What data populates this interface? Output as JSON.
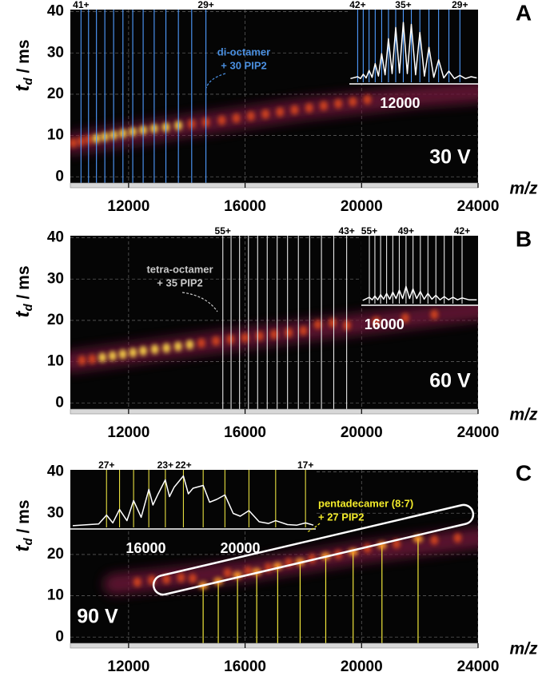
{
  "chart_data": [
    {
      "type": "scatter",
      "panel": "A",
      "voltage": "30 V",
      "xlabel": "m/z",
      "ylabel": {
        "main": "t",
        "sub": "d",
        "rest": " / ms"
      },
      "xlim": [
        10000,
        24000
      ],
      "xticks": [
        12000,
        16000,
        20000,
        24000
      ],
      "ylim": [
        -1.5,
        40.5
      ],
      "yticks": [
        0,
        10,
        20,
        30,
        40
      ],
      "grid": true,
      "band": {
        "color": "#6a1238",
        "x": [
          10000,
          14000,
          18000,
          22000,
          24000
        ],
        "values": [
          8,
          12.3,
          16.4,
          19.5,
          20.5
        ]
      },
      "series": [
        {
          "color": "#d8471c",
          "x": [
            10100,
            10366,
            10625,
            14167,
            14655,
            15200,
            15700,
            16200,
            16700,
            17200,
            17700,
            18200,
            18700,
            19200,
            19700,
            20200
          ],
          "values": [
            8.2,
            8.6,
            9.0,
            12.8,
            13.2,
            13.7,
            14.2,
            14.7,
            15.2,
            15.7,
            16.2,
            16.7,
            17.2,
            17.7,
            18.2,
            18.7
          ]
        },
        {
          "color": "#ffd84a",
          "x": [
            10897,
            11184,
            11486,
            11806,
            12143,
            12500,
            12879,
            13281,
            13710
          ],
          "values": [
            9.3,
            9.7,
            10.1,
            10.5,
            10.9,
            11.3,
            11.7,
            12.0,
            12.4
          ]
        }
      ],
      "charge_lines": {
        "color": "#4f9cff",
        "values": [
          10366,
          10625,
          10897,
          11184,
          11486,
          11806,
          12143,
          12500,
          12879,
          13281,
          13710,
          14167,
          14655
        ]
      },
      "charge_labels": [
        {
          "value": 10366,
          "label": "41+"
        },
        {
          "value": 14655,
          "label": "29+"
        }
      ],
      "annotation": {
        "lines": [
          "di-octamer",
          "+ 30 PIP2"
        ],
        "color": "#4a8fe0"
      },
      "inset": {
        "xlim": [
          9750,
          15460
        ],
        "xticks": [
          12000
        ],
        "ylim": [
          0,
          100
        ],
        "x": [
          9800,
          10119,
          10243,
          10366,
          10496,
          10625,
          10761,
          10897,
          11041,
          11184,
          11335,
          11486,
          11646,
          11806,
          11975,
          12143,
          12322,
          12500,
          12690,
          12879,
          13080,
          13281,
          13496,
          13710,
          13939,
          14167,
          14411,
          14655,
          14900,
          15150,
          15400
        ],
        "values": [
          6,
          9,
          6,
          13,
          7,
          19,
          8,
          30,
          10,
          46,
          12,
          70,
          14,
          88,
          15,
          96,
          14,
          93,
          12,
          80,
          10,
          56,
          8,
          36,
          7,
          18,
          6,
          11,
          6,
          9,
          7
        ],
        "lines": {
          "color": "#4f9cff",
          "values": [
            10119,
            10366,
            10625,
            10897,
            11184,
            11486,
            11806,
            12143,
            12500,
            12879,
            13281,
            13710,
            14167,
            14655
          ]
        },
        "line_labels": [
          {
            "value": 10119,
            "label": "42+"
          },
          {
            "value": 12143,
            "label": "35+"
          },
          {
            "value": 14655,
            "label": "29+"
          }
        ]
      }
    },
    {
      "type": "scatter",
      "panel": "B",
      "voltage": "60 V",
      "xlabel": "m/z",
      "ylabel": {
        "main": "t",
        "sub": "d",
        "rest": " / ms"
      },
      "xlim": [
        10000,
        24000
      ],
      "xticks": [
        12000,
        16000,
        20000,
        24000
      ],
      "ylim": [
        -1.5,
        40.5
      ],
      "yticks": [
        0,
        10,
        20,
        30,
        40
      ],
      "grid": true,
      "band": {
        "color": "#6a1238",
        "x": [
          10000,
          14000,
          18000,
          24000
        ],
        "values": [
          10,
          13.8,
          17.5,
          22.5
        ]
      },
      "series": [
        {
          "color": "#d8471c",
          "x": [
            10400,
            10750,
            14500,
            15000,
            15500,
            16000,
            16500,
            17000,
            17500,
            18000,
            18500,
            19000,
            19500,
            20500,
            21500,
            22500
          ],
          "values": [
            10.3,
            10.6,
            14.5,
            15,
            15.4,
            15.8,
            16.2,
            16.6,
            17,
            17.5,
            19,
            19.4,
            18.8,
            19.8,
            20.6,
            21.4
          ]
        },
        {
          "color": "#ffd84a",
          "x": [
            11100,
            11450,
            11800,
            12150,
            12500,
            12900,
            13300,
            13700,
            14100
          ],
          "values": [
            11,
            11.4,
            11.8,
            12.2,
            12.6,
            13,
            13.3,
            13.7,
            14.1
          ]
        }
      ],
      "charge_lines": {
        "color": "#e8e8e8",
        "values": [
          15236,
          15519,
          15811,
          16115,
          16431,
          16760,
          17102,
          17458,
          17830,
          18217,
          18622,
          19045,
          19488
        ]
      },
      "charge_labels": [
        {
          "value": 15236,
          "label": "55+"
        },
        {
          "value": 19488,
          "label": "43+"
        }
      ],
      "annotation": {
        "lines": [
          "tetra-octamer",
          "+ 35 PIP2"
        ],
        "color": "#c8c8c8"
      },
      "inset": {
        "xlim": [
          14830,
          20765
        ],
        "xticks": [
          16000
        ],
        "ylim": [
          0,
          100
        ],
        "x": [
          14900,
          15236,
          15378,
          15519,
          15665,
          15811,
          15963,
          16115,
          16273,
          16431,
          16596,
          16760,
          16931,
          17102,
          17280,
          17458,
          17644,
          17830,
          18024,
          18217,
          18420,
          18622,
          18834,
          19045,
          19267,
          19488,
          19720,
          19952,
          20300,
          20700
        ],
        "values": [
          5,
          10,
          6,
          12,
          6,
          14,
          7,
          16,
          7,
          18,
          8,
          21,
          8,
          27,
          8,
          23,
          8,
          19,
          7,
          16,
          7,
          13,
          6,
          11,
          6,
          10,
          6,
          9,
          6,
          6
        ],
        "lines": {
          "color": "#e8e8e8",
          "values": [
            15236,
            15519,
            15811,
            16115,
            16431,
            16760,
            17102,
            17458,
            17830,
            18217,
            18622,
            19045,
            19488,
            19952
          ]
        },
        "line_labels": [
          {
            "value": 15236,
            "label": "55+"
          },
          {
            "value": 17102,
            "label": "49+"
          },
          {
            "value": 19952,
            "label": "42+"
          }
        ]
      }
    },
    {
      "type": "scatter",
      "panel": "C",
      "voltage": "90 V",
      "xlabel": "m/z",
      "ylabel": {
        "main": "t",
        "sub": "d",
        "rest": " / ms"
      },
      "xlim": [
        10000,
        24000
      ],
      "xticks": [
        12000,
        16000,
        20000,
        24000
      ],
      "ylim": [
        -1.5,
        40.5
      ],
      "yticks": [
        0,
        10,
        20,
        30,
        40
      ],
      "grid": true,
      "band": {
        "color": "#6a1238",
        "x": [
          11500,
          16000,
          20000,
          24000
        ],
        "values": [
          12.8,
          16,
          20.5,
          24
        ]
      },
      "series": [
        {
          "color": "#d8471c",
          "x": [
            12300,
            12800,
            13300,
            13800,
            14200,
            15400,
            16100,
            16800,
            17500,
            18300,
            19200,
            20200,
            21200,
            22500,
            23300
          ],
          "values": [
            13.3,
            13.8,
            14,
            14.4,
            14.2,
            15.5,
            16,
            16.8,
            18,
            19,
            20,
            21.5,
            22.6,
            23.5,
            24
          ]
        }
      ],
      "drop_lines": {
        "color": "#f0e63a",
        "x": [
          14560,
          15080,
          15740,
          16400,
          17120,
          17890,
          18770,
          19710,
          20700,
          21940
        ],
        "values": [
          12.5,
          13.5,
          15,
          15.8,
          17.2,
          18.2,
          19.6,
          20.6,
          22.2,
          23.8
        ]
      },
      "annotation": {
        "lines": [
          "pentadecamer (8:7)",
          "+ 27 PIP2"
        ],
        "color": "#f2ea2a"
      },
      "inset": {
        "xlim": [
          12800,
          23200
        ],
        "xticks": [
          16000,
          20000
        ],
        "ylim": [
          0,
          100
        ],
        "x": [
          12900,
          13600,
          14000,
          14333,
          14600,
          14885,
          15200,
          15480,
          15800,
          16125,
          16300,
          16500,
          16826,
          17000,
          17200,
          17591,
          17800,
          18000,
          18429,
          18700,
          19000,
          19350,
          19700,
          20000,
          20368,
          20800,
          21200,
          21500,
          22000,
          22400,
          22765,
          23100
        ],
        "values": [
          3,
          5,
          6,
          22,
          8,
          32,
          12,
          48,
          18,
          68,
          40,
          58,
          85,
          55,
          72,
          92,
          60,
          70,
          75,
          45,
          50,
          58,
          25,
          20,
          30,
          10,
          7,
          12,
          5,
          4,
          8,
          4
        ],
        "lines": {
          "color": "#e8e040",
          "values": [
            14333,
            14885,
            15480,
            16125,
            16826,
            17591,
            18429,
            19350,
            20368,
            21500,
            22765
          ]
        },
        "line_labels": [
          {
            "value": 14333,
            "label": "27+"
          },
          {
            "value": 16826,
            "label": "23+"
          },
          {
            "value": 17591,
            "label": "22+"
          },
          {
            "value": 22765,
            "label": "17+"
          }
        ]
      }
    }
  ]
}
